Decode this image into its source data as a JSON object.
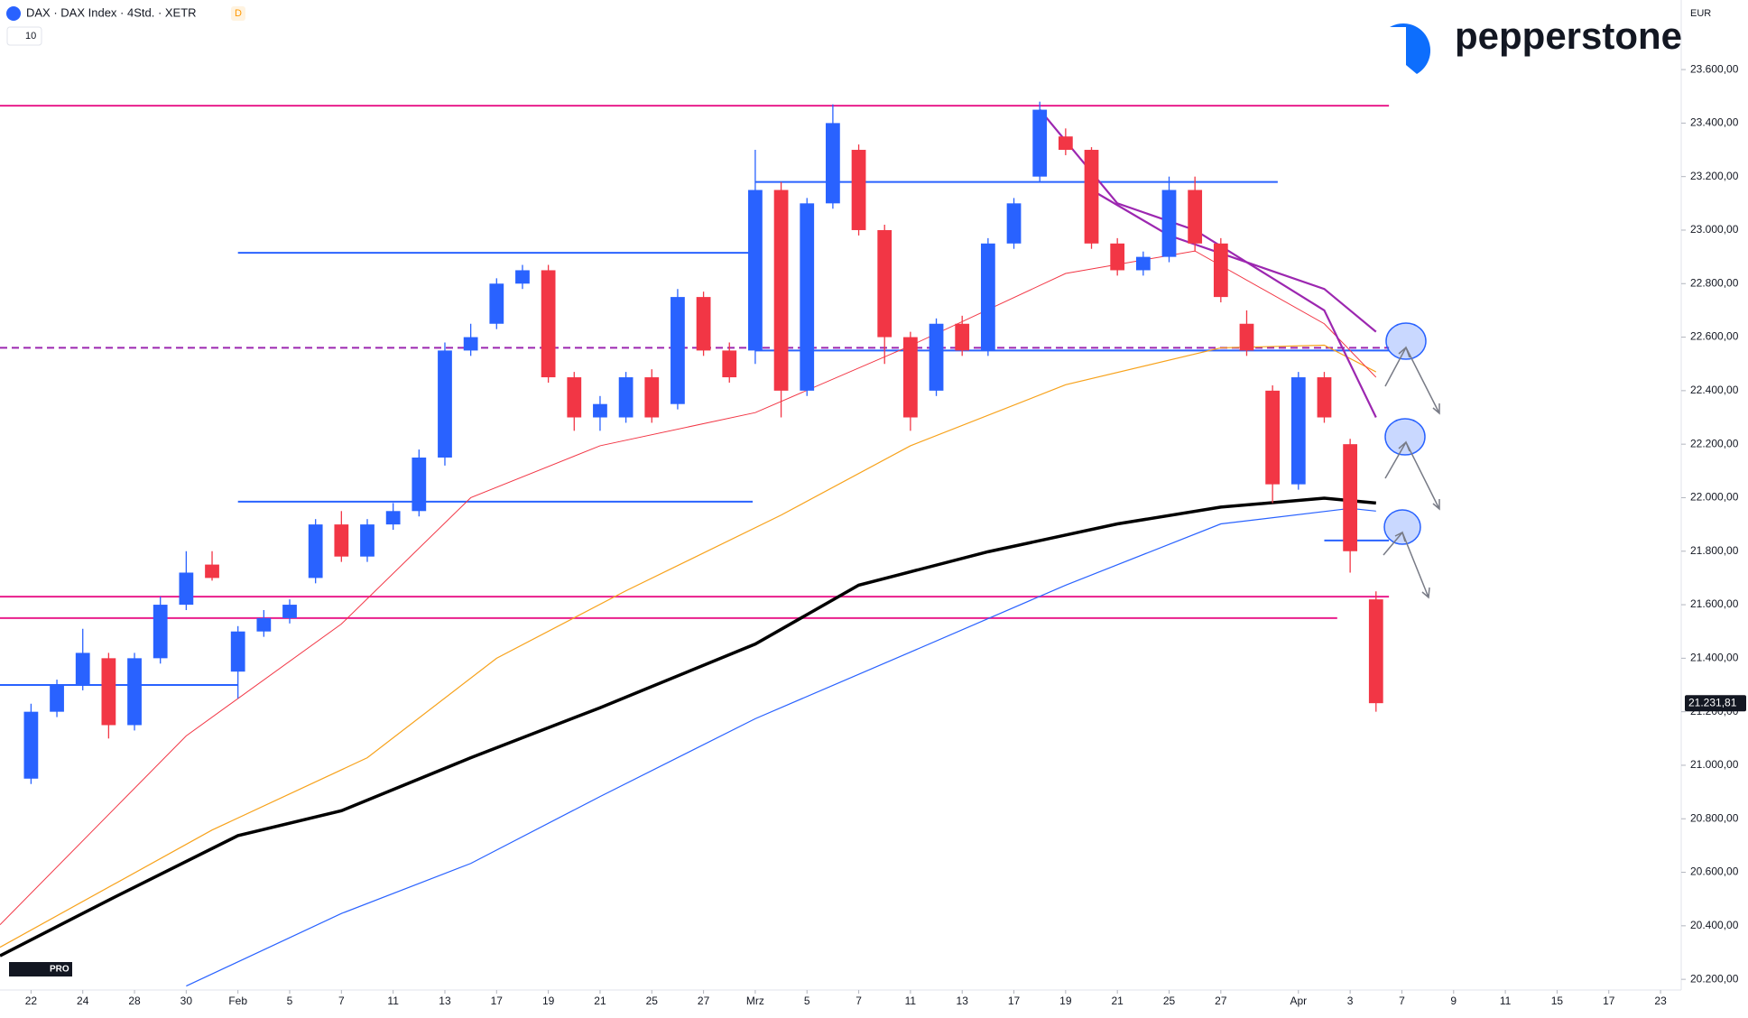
{
  "header": {
    "symbol": "DAX · DAX Index · 4Std. · XETR",
    "badge": "D",
    "indicator": "10",
    "currency": "EUR",
    "brand": "pepperstone",
    "tv_badge": "PRO"
  },
  "chart_data": {
    "type": "candlestick",
    "x": [
      0,
      1,
      2,
      3,
      4,
      5,
      6,
      7,
      8,
      9,
      10,
      11,
      12,
      13,
      14,
      15,
      16,
      17,
      18,
      19,
      20,
      21,
      22,
      23,
      24,
      25,
      26,
      27,
      28,
      29,
      30,
      31,
      32,
      33,
      34,
      35,
      36,
      37,
      38,
      39,
      40,
      41,
      42,
      43,
      44,
      45,
      46,
      47,
      48,
      49,
      50,
      51,
      52
    ],
    "open": [
      20950,
      21200,
      21300,
      21400,
      21150,
      21400,
      21600,
      21750,
      21350,
      21500,
      21550,
      21700,
      21900,
      21780,
      21900,
      21950,
      22150,
      22550,
      22650,
      22800,
      22850,
      22450,
      22300,
      22300,
      22450,
      22350,
      22750,
      22550,
      22550,
      23150,
      22400,
      23100,
      23300,
      23000,
      22600,
      22400,
      22650,
      22550,
      22950,
      23200,
      23350,
      23300,
      22950,
      22850,
      22900,
      23150,
      22950,
      22650,
      22400,
      22050,
      22450,
      22200,
      21620
    ],
    "high": [
      21230,
      21320,
      21510,
      21420,
      21420,
      21630,
      21800,
      21800,
      21520,
      21580,
      21620,
      21920,
      21950,
      21920,
      21980,
      22180,
      22580,
      22650,
      22820,
      22870,
      22870,
      22470,
      22380,
      22470,
      22480,
      22780,
      22770,
      22580,
      23300,
      23180,
      23120,
      23470,
      23320,
      23020,
      22620,
      22670,
      22680,
      22970,
      23120,
      23480,
      23380,
      23310,
      22970,
      22920,
      23200,
      23200,
      22970,
      22700,
      22420,
      22470,
      22470,
      22220,
      21650
    ],
    "low": [
      20930,
      21180,
      21280,
      21100,
      21130,
      21380,
      21580,
      21690,
      21250,
      21480,
      21530,
      21680,
      21760,
      21760,
      21880,
      21930,
      22120,
      22530,
      22630,
      22780,
      22430,
      22250,
      22250,
      22280,
      22280,
      22330,
      22530,
      22430,
      22500,
      22300,
      22380,
      23080,
      22980,
      22500,
      22250,
      22380,
      22530,
      22530,
      22930,
      23180,
      23280,
      22930,
      22830,
      22830,
      22880,
      22920,
      22730,
      22530,
      21980,
      22030,
      22280,
      21720,
      21200
    ],
    "close": [
      21200,
      21300,
      21420,
      21150,
      21400,
      21600,
      21720,
      21700,
      21500,
      21550,
      21600,
      21900,
      21780,
      21900,
      21950,
      22150,
      22550,
      22600,
      22800,
      22850,
      22450,
      22300,
      22350,
      22450,
      22300,
      22750,
      22550,
      22450,
      23150,
      22400,
      23100,
      23400,
      23000,
      22600,
      22300,
      22650,
      22550,
      22950,
      23100,
      23450,
      23300,
      22950,
      22850,
      22900,
      23150,
      22950,
      22750,
      22550,
      22050,
      22450,
      22300,
      21800,
      21232
    ],
    "up_color": "#2962ff",
    "down_color": "#f23645",
    "overlays": [
      {
        "color": "#000000",
        "width": 3.5,
        "x": [
          -1.2,
          3,
          8,
          12,
          17,
          22,
          28,
          32,
          37,
          42,
          46,
          50,
          52
        ],
        "values": [
          20288,
          20496,
          20737,
          20830,
          21028,
          21215,
          21453,
          21673,
          21798,
          21902,
          21965,
          21998,
          21980
        ]
      },
      {
        "color": "#2962ff",
        "width": 1.2,
        "x": [
          6,
          12,
          17,
          22,
          28,
          34,
          40,
          46,
          51,
          52
        ],
        "values": [
          20175,
          20446,
          20633,
          20883,
          21174,
          21423,
          21673,
          21902,
          21960,
          21950
        ]
      },
      {
        "color": "#f7a21b",
        "width": 1.2,
        "x": [
          -1.2,
          7,
          13,
          18,
          23,
          29,
          34,
          40,
          46,
          50,
          52
        ],
        "values": [
          20320,
          20758,
          21028,
          21400,
          21652,
          21935,
          22194,
          22422,
          22560,
          22570,
          22470
        ]
      },
      {
        "color": "#f23645",
        "width": 1,
        "x": [
          -1.2,
          6,
          12,
          17,
          22,
          28,
          34,
          40,
          45,
          50,
          52
        ],
        "values": [
          20404,
          21110,
          21528,
          22000,
          22194,
          22318,
          22568,
          22838,
          22922,
          22650,
          22450
        ]
      },
      {
        "color": "#9c27b0",
        "width": 2.2,
        "x": [
          39,
          42,
          45,
          48,
          50,
          52
        ],
        "values": [
          23450,
          23100,
          23000,
          22820,
          22700,
          22300
        ]
      },
      {
        "color": "#9c27b0",
        "width": 2.2,
        "x": [
          41,
          44,
          47,
          50,
          52
        ],
        "values": [
          23150,
          22980,
          22880,
          22780,
          22620
        ]
      }
    ],
    "levels": [
      {
        "price": 23465,
        "from": -1.2,
        "to": 52.5,
        "color": "#e91e8c"
      },
      {
        "price": 23180,
        "from": 28,
        "to": 48.2,
        "color": "#2962ff"
      },
      {
        "price": 22915,
        "from": 8,
        "to": 27.9,
        "color": "#2962ff"
      },
      {
        "price": 22550,
        "from": 28,
        "to": 52.5,
        "color": "#2962ff"
      },
      {
        "price": 22560,
        "from": -1.2,
        "to": 52.5,
        "color": "#9c27b0",
        "dash": true
      },
      {
        "price": 21985,
        "from": 8,
        "to": 27.9,
        "color": "#2962ff"
      },
      {
        "price": 21840,
        "from": 50,
        "to": 52.5,
        "color": "#2962ff"
      },
      {
        "price": 21630,
        "from": -1.2,
        "to": 52.5,
        "color": "#e91e8c"
      },
      {
        "price": 21550,
        "from": -1.2,
        "to": 50.5,
        "color": "#e91e8c"
      },
      {
        "price": 21300,
        "from": -1.2,
        "to": 8,
        "color": "#2962ff"
      }
    ],
    "last_price": {
      "value": 21231.81,
      "label": "21.231,81"
    },
    "xlim": [
      -1.2,
      63.8
    ],
    "ylim": [
      20160,
      23860
    ],
    "xticks": [
      {
        "value": 0,
        "label": "22"
      },
      {
        "value": 2,
        "label": "24"
      },
      {
        "value": 4,
        "label": "28"
      },
      {
        "value": 6,
        "label": "30"
      },
      {
        "value": 8,
        "label": "Feb"
      },
      {
        "value": 10,
        "label": "5"
      },
      {
        "value": 12,
        "label": "7"
      },
      {
        "value": 14,
        "label": "11"
      },
      {
        "value": 16,
        "label": "13"
      },
      {
        "value": 18,
        "label": "17"
      },
      {
        "value": 20,
        "label": "19"
      },
      {
        "value": 22,
        "label": "21"
      },
      {
        "value": 24,
        "label": "25"
      },
      {
        "value": 26,
        "label": "27"
      },
      {
        "value": 28,
        "label": "Mrz"
      },
      {
        "value": 30,
        "label": "5"
      },
      {
        "value": 32,
        "label": "7"
      },
      {
        "value": 34,
        "label": "11"
      },
      {
        "value": 36,
        "label": "13"
      },
      {
        "value": 38,
        "label": "17"
      },
      {
        "value": 40,
        "label": "19"
      },
      {
        "value": 42,
        "label": "21"
      },
      {
        "value": 44,
        "label": "25"
      },
      {
        "value": 46,
        "label": "27"
      },
      {
        "value": 49,
        "label": "Apr"
      },
      {
        "value": 51,
        "label": "3"
      },
      {
        "value": 53,
        "label": "7"
      },
      {
        "value": 55,
        "label": "9"
      },
      {
        "value": 57,
        "label": "11"
      },
      {
        "value": 59,
        "label": "15"
      },
      {
        "value": 61,
        "label": "17"
      },
      {
        "value": 63,
        "label": "23"
      }
    ],
    "yticks": [
      {
        "value": 20200,
        "label": "20.200,00"
      },
      {
        "value": 20400,
        "label": "20.400,00"
      },
      {
        "value": 20600,
        "label": "20.600,00"
      },
      {
        "value": 20800,
        "label": "20.800,00"
      },
      {
        "value": 21000,
        "label": "21.000,00"
      },
      {
        "value": 21200,
        "label": "21.200,00"
      },
      {
        "value": 21400,
        "label": "21.400,00"
      },
      {
        "value": 21600,
        "label": "21.600,00"
      },
      {
        "value": 21800,
        "label": "21.800,00"
      },
      {
        "value": 22000,
        "label": "22.000,00"
      },
      {
        "value": 22200,
        "label": "22.200,00"
      },
      {
        "value": 22400,
        "label": "22.400,00"
      },
      {
        "value": 22600,
        "label": "22.600,00"
      },
      {
        "value": 22800,
        "label": "22.800,00"
      },
      {
        "value": 23000,
        "label": "23.000,00"
      },
      {
        "value": 23200,
        "label": "23.200,00"
      },
      {
        "value": 23400,
        "label": "23.400,00"
      },
      {
        "value": 23600,
        "label": "23.600,00"
      }
    ]
  }
}
